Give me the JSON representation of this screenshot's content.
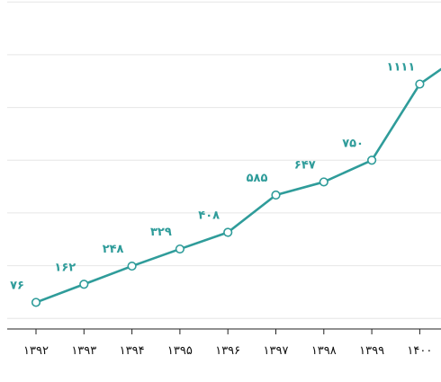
{
  "chart_data": {
    "type": "line",
    "title": "",
    "xlabel": "",
    "ylabel": "",
    "categories": [
      "۱۳۹۲",
      "۱۳۹۳",
      "۱۳۹۴",
      "۱۳۹۵",
      "۱۳۹۶",
      "۱۳۹۷",
      "۱۳۹۸",
      "۱۳۹۹",
      "۱۴۰۰"
    ],
    "series": [
      {
        "values": [
          76,
          162,
          248,
          329,
          408,
          585,
          647,
          750,
          1111
        ],
        "value_labels": [
          "۷۶",
          "۱۶۲",
          "۲۴۸",
          "۳۲۹",
          "۴۰۸",
          "۵۸۵",
          "۶۴۷",
          "۷۵۰",
          "۱۱۱۱"
        ],
        "continues_to": 1270
      }
    ],
    "ylim": [
      -50,
      1450
    ],
    "gridlines": [
      0,
      250,
      500,
      750,
      1000,
      1250,
      1500
    ],
    "grid": true,
    "legend": "none",
    "colors": {
      "line": "#2f9c9a",
      "label": "#2f9c9a",
      "grid": "#e6e6e6",
      "axis": "#222222"
    }
  }
}
